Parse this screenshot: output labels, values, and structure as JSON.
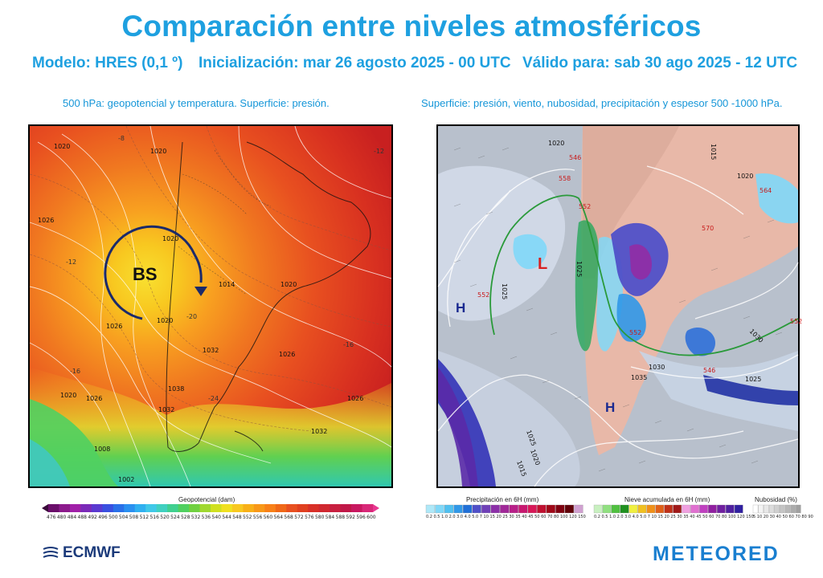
{
  "header": {
    "title": "Comparación entre niveles atmosféricos",
    "model": "Modelo: HRES (0,1 º)",
    "init": "Inicialización: mar 26 agosto 2025 - 00 UTC",
    "valid": "Válido para: sab 30 ago 2025 - 12 UTC"
  },
  "left_panel": {
    "subtitle": "500 hPa: geopotencial y temperatura. Superficie: presión.",
    "annotation": "BS",
    "isobar_labels": [
      "1020",
      "1020",
      "1026",
      "1020",
      "1014",
      "1020",
      "1026",
      "1020",
      "1026",
      "1032",
      "1038",
      "1032",
      "1026",
      "1020",
      "1008",
      "1002",
      "1032",
      "1026"
    ],
    "temp_labels": [
      "-12",
      "-16",
      "-20",
      "-24",
      "-16",
      "-12",
      "-8"
    ],
    "colorbar_title": "Geopotencial (dam)",
    "colorbar_ticks": [
      "476",
      "480",
      "484",
      "488",
      "492",
      "496",
      "500",
      "504",
      "508",
      "512",
      "516",
      "520",
      "524",
      "528",
      "532",
      "536",
      "540",
      "544",
      "548",
      "552",
      "556",
      "560",
      "564",
      "568",
      "572",
      "576",
      "580",
      "584",
      "588",
      "592",
      "596",
      "600"
    ],
    "colorbar_colors": [
      "#3a0a3a",
      "#6a0f6a",
      "#8c1a8c",
      "#a020a8",
      "#7a2ab8",
      "#5a3ad0",
      "#3a50e0",
      "#2a70e8",
      "#2a90f0",
      "#30b0f0",
      "#40c8e8",
      "#40d0c0",
      "#40d090",
      "#50d060",
      "#70d040",
      "#a0d830",
      "#d0e020",
      "#f0e020",
      "#f8c820",
      "#f8b018",
      "#f89818",
      "#f88018",
      "#f06818",
      "#e85020",
      "#e04020",
      "#d83028",
      "#d02830",
      "#c82040",
      "#c01848",
      "#c81860",
      "#d82878",
      "#e83890"
    ]
  },
  "right_panel": {
    "subtitle": "Superficie: presión, viento, nubosidad, precipitación y espesor 500 -1000 hPa.",
    "lowmark": "L",
    "highmarks": [
      "H",
      "H"
    ],
    "isobar_labels": [
      "1020",
      "1025",
      "1030",
      "1035",
      "1025",
      "1020",
      "1015",
      "1025",
      "1030",
      "1015",
      "1020",
      "1025"
    ],
    "thickness_labels": [
      "546",
      "558",
      "552",
      "552",
      "552",
      "546",
      "564",
      "570",
      "552"
    ],
    "legends": [
      {
        "title": "Precipitación en 6H (mm)",
        "ticks": "0.2 0.5 1.0 2.0 3.0 4.0 5.0 7 10 15 20 25 30 35 40 45 50 60 70 80 100 120 150",
        "colors": [
          "#aee8f8",
          "#80d8f8",
          "#50c0f0",
          "#3098e8",
          "#2070d8",
          "#5050c8",
          "#7040b8",
          "#8c30a8",
          "#a02898",
          "#b82088",
          "#c81870",
          "#d81858",
          "#c01030",
          "#a00818",
          "#800010",
          "#600008",
          "#d0a0d0"
        ]
      },
      {
        "title": "Nieve acumulada en 6H (mm)",
        "ticks": "0.2 0.5 1.0 2.0 3.0 4.0 5.0 7 10 15 20 25 30 35 40 45 50 60 70 80 100 120 150",
        "colors": [
          "#c8f0c0",
          "#90e080",
          "#50c040",
          "#209020",
          "#f0f040",
          "#f0c020",
          "#f09018",
          "#e06018",
          "#c03018",
          "#a01818",
          "#f0a0e0",
          "#e070d0",
          "#c040c0",
          "#9020a0",
          "#7020a0",
          "#5020a0",
          "#3020a0"
        ]
      },
      {
        "title": "Nubosidad (%)",
        "ticks": "5 10 20 30 40 50 60 70 80 90",
        "colors": [
          "#ffffff",
          "#f4f4f4",
          "#e8e8e8",
          "#dcdcdc",
          "#d0d0d0",
          "#c4c4c4",
          "#b8b8b8",
          "#acacac",
          "#a0a0a0"
        ]
      }
    ]
  },
  "footer": {
    "left_logo": "ECMWF",
    "right_logo": "METEORED"
  }
}
